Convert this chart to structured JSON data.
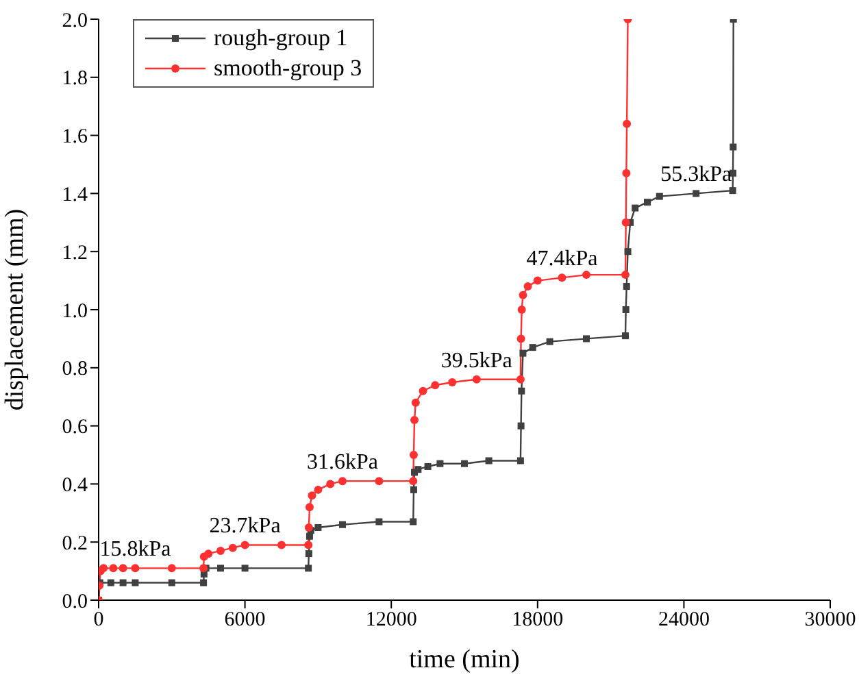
{
  "chart_data": {
    "type": "line",
    "xlabel": "time (min)",
    "ylabel": "displacement (mm)",
    "xlim": [
      0,
      30000
    ],
    "xticks": [
      0,
      6000,
      12000,
      18000,
      24000,
      30000
    ],
    "ylim": [
      0,
      2.0
    ],
    "yticks": [
      {
        "value": 0,
        "label": "0.0"
      },
      {
        "value": 0.2,
        "label": "0.2"
      },
      {
        "value": 0.4,
        "label": "0.4"
      },
      {
        "value": 0.6,
        "label": "0.6"
      },
      {
        "value": 0.8,
        "label": "0.8"
      },
      {
        "value": 1.0,
        "label": "1.0"
      },
      {
        "value": 1.2,
        "label": "1.2"
      },
      {
        "value": 1.4,
        "label": "1.4"
      },
      {
        "value": 1.6,
        "label": "1.6"
      },
      {
        "value": 1.8,
        "label": "1.8"
      },
      {
        "value": 2.0,
        "label": "2.0"
      }
    ],
    "grid": false,
    "legend": "top left",
    "series": [
      {
        "name": "rough-group 1",
        "color": "#404040",
        "marker": "square",
        "x": [
          0,
          50,
          500,
          1000,
          1500,
          3000,
          4300,
          4320,
          4400,
          5000,
          6000,
          8600,
          8620,
          8650,
          8700,
          9000,
          10000,
          11500,
          12900,
          12920,
          12950,
          13100,
          13500,
          14000,
          15000,
          16000,
          17300,
          17320,
          17340,
          17400,
          17800,
          18500,
          20000,
          21600,
          21620,
          21650,
          21700,
          21800,
          22000,
          22500,
          23000,
          24500,
          26000,
          26010,
          26020,
          26030
        ],
        "values": [
          0,
          0.06,
          0.06,
          0.06,
          0.06,
          0.06,
          0.06,
          0.09,
          0.11,
          0.11,
          0.11,
          0.11,
          0.16,
          0.22,
          0.24,
          0.25,
          0.26,
          0.27,
          0.27,
          0.38,
          0.44,
          0.45,
          0.46,
          0.47,
          0.47,
          0.48,
          0.48,
          0.6,
          0.72,
          0.85,
          0.87,
          0.89,
          0.9,
          0.91,
          1.0,
          1.08,
          1.2,
          1.3,
          1.35,
          1.37,
          1.39,
          1.4,
          1.41,
          1.47,
          1.56,
          2.0
        ]
      },
      {
        "name": "smooth-group 3",
        "color": "#ff3030",
        "marker": "circle",
        "x": [
          0,
          30,
          80,
          200,
          600,
          1000,
          1500,
          3000,
          4300,
          4320,
          4500,
          5000,
          5500,
          6000,
          7500,
          8600,
          8620,
          8650,
          8750,
          9000,
          9500,
          10000,
          11500,
          12900,
          12920,
          12950,
          13000,
          13300,
          13800,
          14500,
          15500,
          17300,
          17320,
          17350,
          17400,
          17600,
          18000,
          19000,
          20000,
          21600,
          21620,
          21640,
          21660,
          21700
        ],
        "values": [
          0,
          0.05,
          0.1,
          0.11,
          0.11,
          0.11,
          0.11,
          0.11,
          0.11,
          0.15,
          0.16,
          0.17,
          0.18,
          0.19,
          0.19,
          0.19,
          0.25,
          0.32,
          0.36,
          0.38,
          0.4,
          0.41,
          0.41,
          0.41,
          0.5,
          0.62,
          0.68,
          0.72,
          0.74,
          0.75,
          0.76,
          0.76,
          0.9,
          1.0,
          1.05,
          1.08,
          1.1,
          1.11,
          1.12,
          1.12,
          1.3,
          1.47,
          1.64,
          2.0
        ]
      }
    ],
    "annotations": [
      {
        "text": "15.8kPa",
        "x": 1500,
        "y": 0.11
      },
      {
        "text": "23.7kPa",
        "x": 6000,
        "y": 0.19
      },
      {
        "text": "31.6kPa",
        "x": 10000,
        "y": 0.41
      },
      {
        "text": "39.5kPa",
        "x": 15500,
        "y": 0.76
      },
      {
        "text": "47.4kPa",
        "x": 19000,
        "y": 1.11
      },
      {
        "text": "55.3kPa",
        "x": 24500,
        "y": 1.4
      }
    ]
  }
}
